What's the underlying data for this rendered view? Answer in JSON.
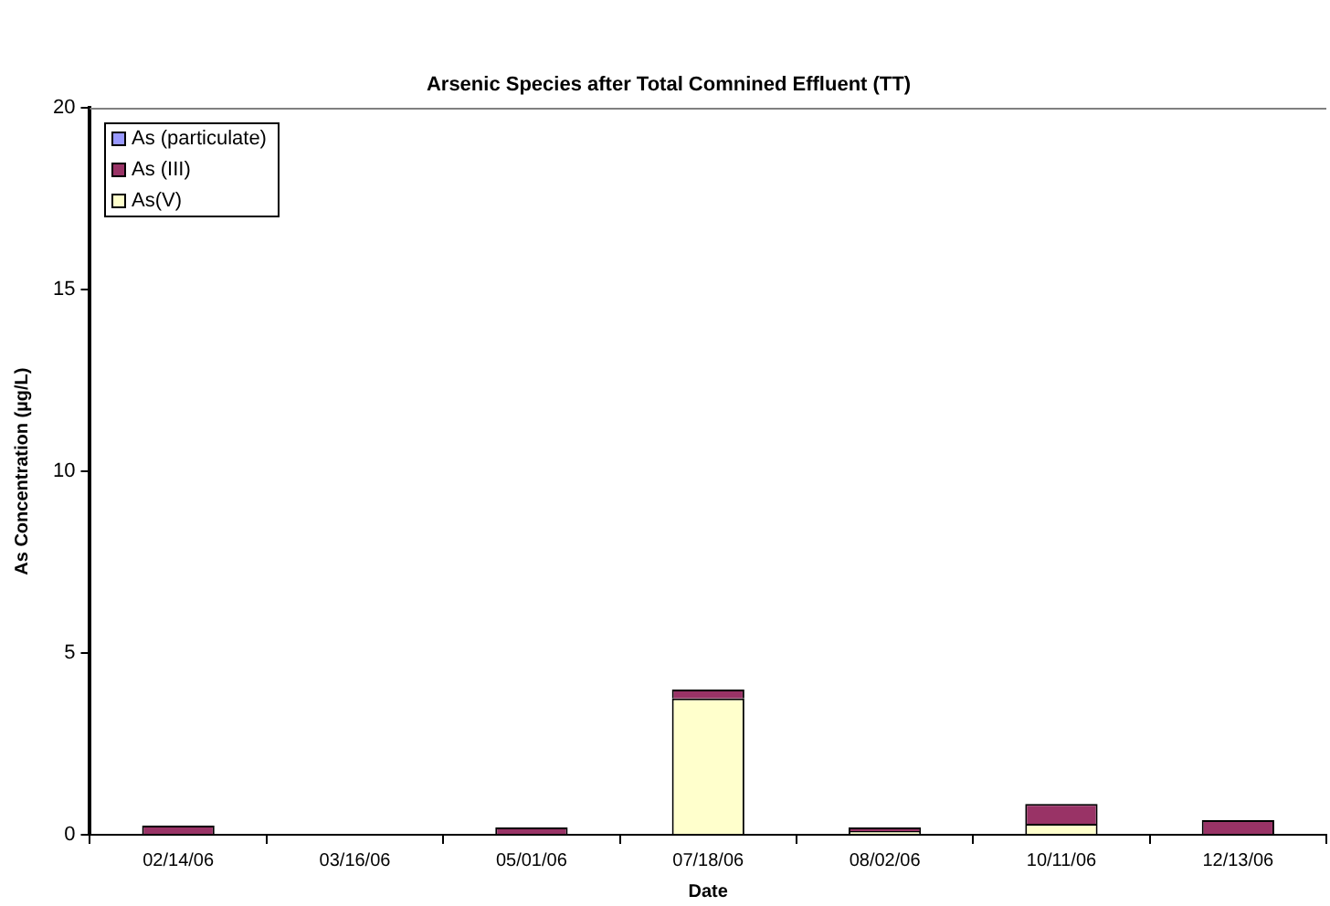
{
  "chart_data": {
    "type": "bar",
    "title": "Arsenic Species after Total Comnined Effluent (TT)",
    "xlabel": "Date",
    "ylabel": "As Concentration (µg/L)",
    "categories": [
      "02/14/06",
      "03/16/06",
      "05/01/06",
      "07/18/06",
      "08/02/06",
      "10/11/06",
      "12/13/06"
    ],
    "series": [
      {
        "name": "As(V)",
        "color": "#ffffcc",
        "values": [
          0,
          0,
          0,
          3.75,
          0.1,
          0.3,
          0
        ]
      },
      {
        "name": "As (III)",
        "color": "#993366",
        "values": [
          0.25,
          0,
          0.2,
          0.25,
          0.1,
          0.55,
          0.4
        ]
      },
      {
        "name": "As (particulate)",
        "color": "#9999ff",
        "values": [
          0,
          0,
          0,
          0,
          0,
          0,
          0
        ]
      }
    ],
    "stacked": true,
    "ylim": [
      0,
      20
    ],
    "yticks": [
      0,
      5,
      10,
      15,
      20
    ],
    "grid": false,
    "legend": "top left"
  }
}
